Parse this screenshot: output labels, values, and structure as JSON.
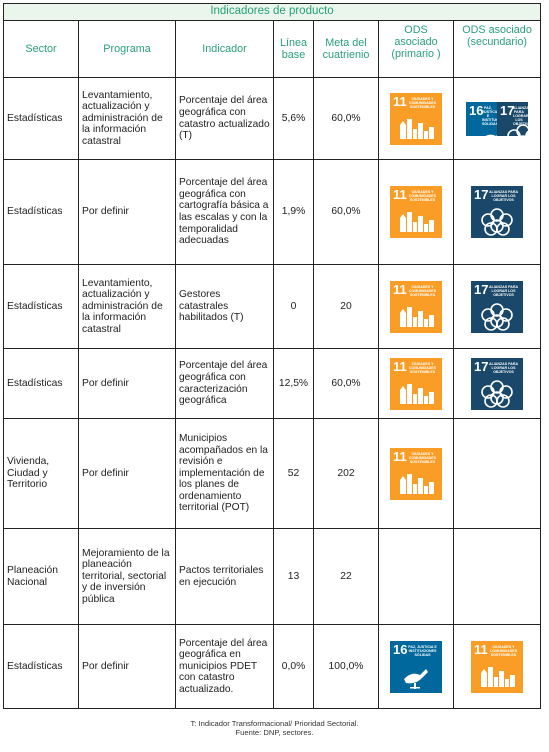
{
  "title": "Indicadores de producto",
  "headers": {
    "sector": "Sector",
    "programa": "Programa",
    "indicador": "Indicador",
    "linea_base": "Línea base",
    "meta": "Meta del cuatrienio",
    "ods_primario": "ODS asociado (primario )",
    "ods_secundario": "ODS asociado (secundario)"
  },
  "rows": [
    {
      "sector": "Estadísticas",
      "programa": "Levantamiento, actualización y administración de la información catastral",
      "indicador": "Porcentaje del área geográfica con catastro actualizado (T)",
      "linea_base": "5,6%",
      "meta": "60,0%",
      "ods_primario": "sdg-11-icon",
      "ods_secundario": "sdg-16-17-icon"
    },
    {
      "sector": "Estadísticas",
      "programa": "Por definir",
      "indicador": "Porcentaje del área geográfica con cartografía básica a las escalas y con la temporalidad adecuadas",
      "linea_base": "1,9%",
      "meta": "60,0%",
      "ods_primario": "sdg-11-icon",
      "ods_secundario": "sdg-17-icon"
    },
    {
      "sector": "Estadísticas",
      "programa": "Levantamiento, actualización y administración de la información catastral",
      "indicador": "Gestores catastrales habilitados (T)",
      "linea_base": "0",
      "meta": "20",
      "ods_primario": "sdg-11-icon",
      "ods_secundario": "sdg-17-icon"
    },
    {
      "sector": "Estadísticas",
      "programa": "Por definir",
      "indicador": "Porcentaje del área geográfica con caracterización geográfica",
      "linea_base": "12,5%",
      "meta": "60,0%",
      "ods_primario": "sdg-11-icon",
      "ods_secundario": "sdg-17-icon"
    },
    {
      "sector": "Vivienda, Ciudad y Territorio",
      "programa": "Por definir",
      "indicador": "Municipios acompañados en la revisión e implementación de los planes de ordenamiento territorial (POT)",
      "linea_base": "52",
      "meta": "202",
      "ods_primario": "sdg-11-icon",
      "ods_secundario": ""
    },
    {
      "sector": "Planeación Nacional",
      "programa": "Mejoramiento de la planeación territorial, sectorial y de inversión pública",
      "indicador": "Pactos territoriales en ejecución",
      "linea_base": "13",
      "meta": "22",
      "ods_primario": "",
      "ods_secundario": ""
    },
    {
      "sector": "Estadísticas",
      "programa": "Por definir",
      "indicador": "Porcentaje del área geográfica en municipios PDET con catastro actualizado.",
      "linea_base": "0,0%",
      "meta": "100,0%",
      "ods_primario": "sdg-16-icon",
      "ods_secundario": "sdg-11-icon"
    }
  ],
  "sdg": {
    "11": {
      "number": "11",
      "label": "CIUDADES Y COMUNIDADES SOSTENIBLES",
      "color": "#f99d26"
    },
    "16": {
      "number": "16",
      "label": "PAZ, JUSTICIA E INSTITUCIONES SÓLIDAS",
      "color": "#00689d"
    },
    "17": {
      "number": "17",
      "label": "ALIANZAS PARA LOGRAR LOS OBJETIVOS",
      "color": "#19486a"
    }
  },
  "footnotes": {
    "line1": "T: Indicador Transformacional/ Prioridad Sectorial.",
    "line2": "Fuente: DNP, sectores."
  }
}
